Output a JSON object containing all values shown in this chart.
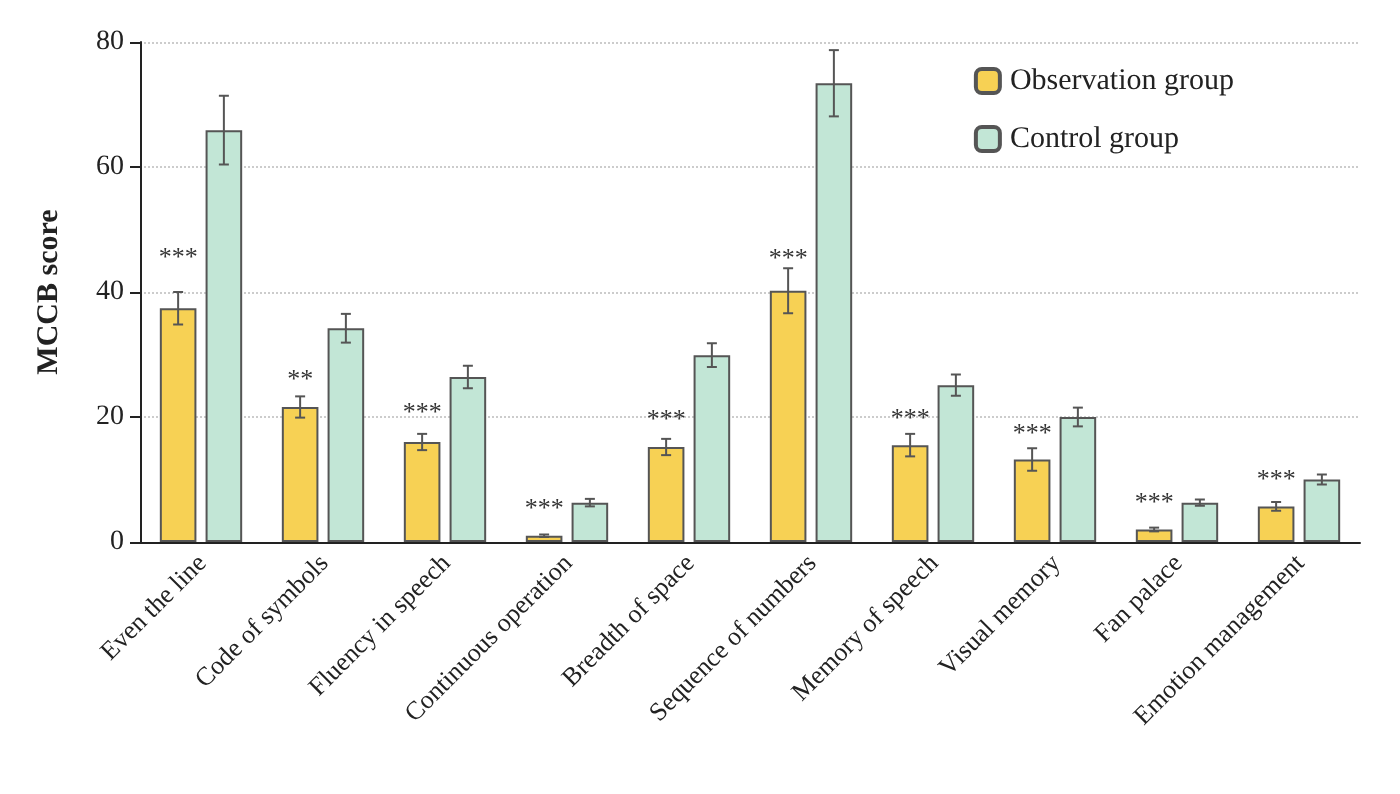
{
  "chart_data": {
    "type": "bar",
    "ylabel": "MCCB score",
    "categories": [
      "Even the line",
      "Code of symbols",
      "Fluency in speech",
      "Continuous operation",
      "Breadth of space",
      "Sequence of numbers",
      "Memory of speech",
      "Visual memory",
      "Fan palace",
      "Emotion management"
    ],
    "series": [
      {
        "name": "Observation group",
        "color": "#f7d154",
        "values": [
          37.4,
          21.6,
          16.0,
          1.0,
          15.2,
          40.2,
          15.5,
          13.2,
          2.0,
          5.7
        ],
        "errors": [
          2.6,
          1.7,
          1.3,
          0.2,
          1.3,
          3.6,
          1.8,
          1.8,
          0.3,
          0.7
        ]
      },
      {
        "name": "Control group",
        "color": "#c2e6d6",
        "values": [
          65.9,
          34.2,
          26.4,
          6.3,
          29.9,
          73.4,
          25.1,
          20.0,
          6.3,
          10.0
        ],
        "errors": [
          5.5,
          2.3,
          1.8,
          0.6,
          1.9,
          5.3,
          1.7,
          1.5,
          0.5,
          0.8
        ]
      }
    ],
    "ylim": [
      0,
      80
    ],
    "yticks": [
      0,
      20,
      40,
      60,
      80
    ],
    "grid": "y",
    "legend": "top right",
    "annotations": [
      {
        "text": "***",
        "x": "Even the line",
        "y": 45.8
      },
      {
        "text": "**",
        "x": "Code of symbols",
        "y": 26.3
      },
      {
        "text": "***",
        "x": "Fluency in speech",
        "y": 21
      },
      {
        "text": "***",
        "x": "Continuous operation",
        "y": 5.6
      },
      {
        "text": "***",
        "x": "Breadth of space",
        "y": 19.8
      },
      {
        "text": "***",
        "x": "Sequence of numbers",
        "y": 45.6
      },
      {
        "text": "***",
        "x": "Memory of speech",
        "y": 20
      },
      {
        "text": "***",
        "x": "Visual memory",
        "y": 17.6
      },
      {
        "text": "***",
        "x": "Fan palace",
        "y": 6.5
      },
      {
        "text": "***",
        "x": "Emotion management",
        "y": 10.3
      }
    ]
  }
}
